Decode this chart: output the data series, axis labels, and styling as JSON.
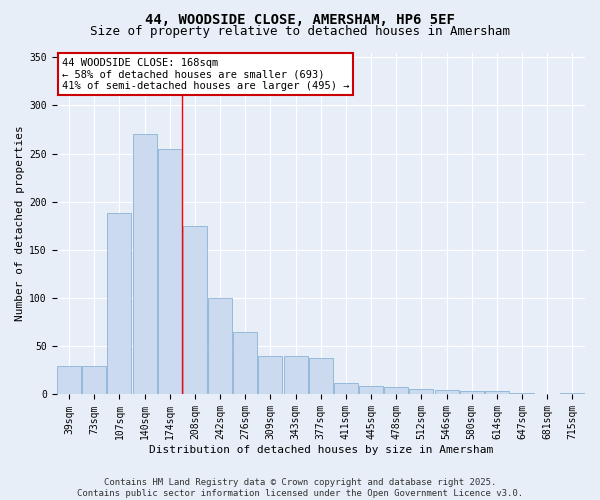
{
  "title_line1": "44, WOODSIDE CLOSE, AMERSHAM, HP6 5EF",
  "title_line2": "Size of property relative to detached houses in Amersham",
  "xlabel": "Distribution of detached houses by size in Amersham",
  "ylabel": "Number of detached properties",
  "categories": [
    "39sqm",
    "73sqm",
    "107sqm",
    "140sqm",
    "174sqm",
    "208sqm",
    "242sqm",
    "276sqm",
    "309sqm",
    "343sqm",
    "377sqm",
    "411sqm",
    "445sqm",
    "478sqm",
    "512sqm",
    "546sqm",
    "580sqm",
    "614sqm",
    "647sqm",
    "681sqm",
    "715sqm"
  ],
  "values": [
    30,
    30,
    188,
    270,
    255,
    175,
    100,
    65,
    40,
    40,
    38,
    12,
    9,
    8,
    6,
    5,
    4,
    4,
    2,
    1,
    2
  ],
  "bar_color": "#ccdaf0",
  "bar_edge_color": "#7aaad0",
  "background_color": "#e8eef8",
  "grid_color": "#ffffff",
  "red_line_x": 4.5,
  "annotation_line1": "44 WOODSIDE CLOSE: 168sqm",
  "annotation_line2": "← 58% of detached houses are smaller (693)",
  "annotation_line3": "41% of semi-detached houses are larger (495) →",
  "annotation_box_color": "#ffffff",
  "annotation_box_edge_color": "#cc0000",
  "ylim": [
    0,
    355
  ],
  "yticks": [
    0,
    50,
    100,
    150,
    200,
    250,
    300,
    350
  ],
  "footer_line1": "Contains HM Land Registry data © Crown copyright and database right 2025.",
  "footer_line2": "Contains public sector information licensed under the Open Government Licence v3.0.",
  "title_fontsize": 10,
  "subtitle_fontsize": 9,
  "axis_label_fontsize": 8,
  "tick_fontsize": 7,
  "annotation_fontsize": 7.5,
  "footer_fontsize": 6.5
}
